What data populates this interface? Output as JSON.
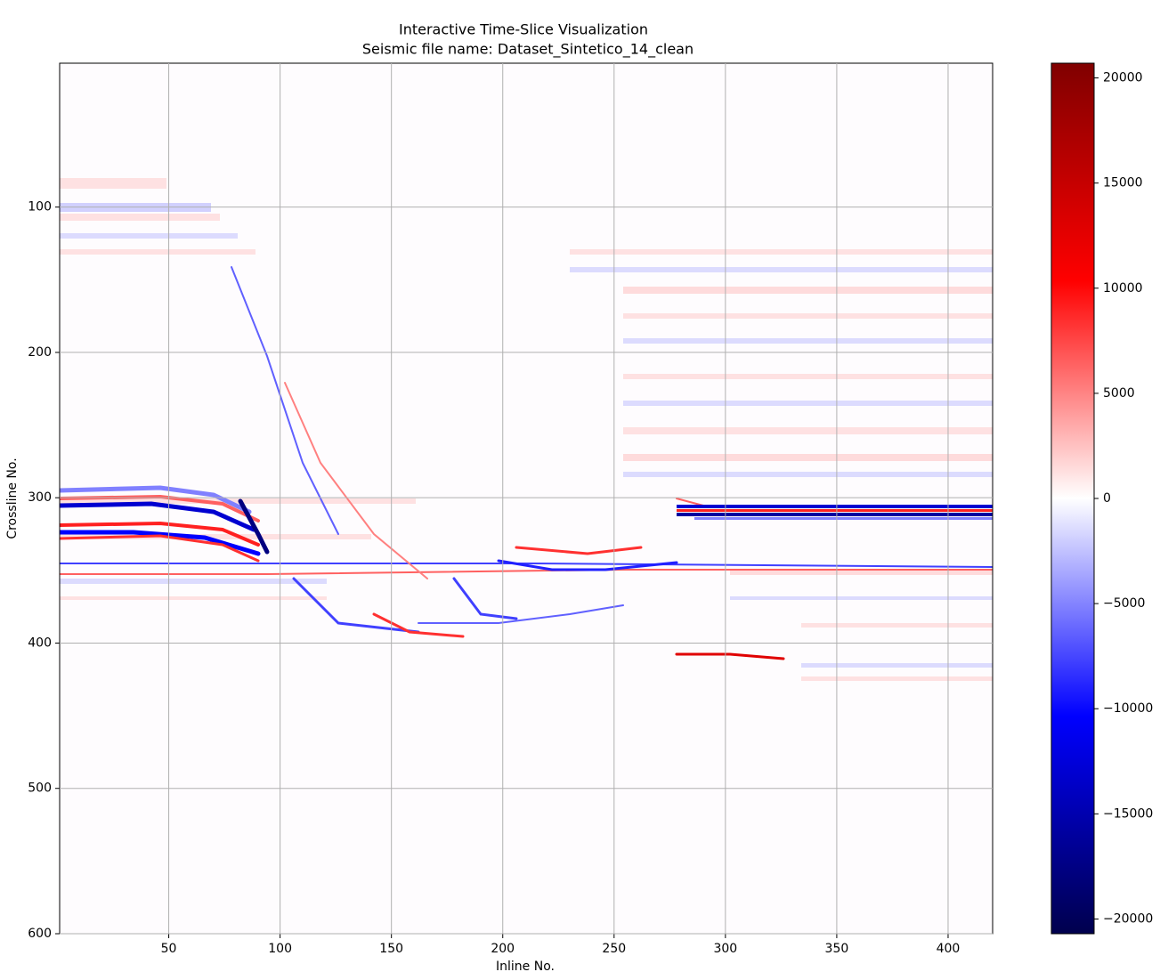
{
  "chart_data": {
    "type": "heatmap",
    "title": "Interactive Time-Slice Visualization",
    "subtitle": "Seismic file name: Dataset_Sintetico_14_clean",
    "x_label": "Inline No.",
    "y_label": "Crossline No.",
    "xlim": [
      1,
      420
    ],
    "xticks": [
      50,
      100,
      150,
      200,
      250,
      300,
      350,
      400
    ],
    "ylim": [
      600,
      1
    ],
    "yticks": [
      100,
      200,
      300,
      400,
      500,
      600
    ],
    "grid": true,
    "colormap": "seismic",
    "clim": [
      -20700,
      20700
    ],
    "cticks": [
      {
        "value": -20000,
        "label": "−20000"
      },
      {
        "value": -15000,
        "label": "−15000"
      },
      {
        "value": -10000,
        "label": "−10000"
      },
      {
        "value": -5000,
        "label": "−5000"
      },
      0,
      5000,
      10000,
      15000,
      20000
    ]
  }
}
